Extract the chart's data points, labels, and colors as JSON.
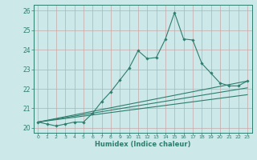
{
  "xlabel": "Humidex (Indice chaleur)",
  "background_color": "#cce8e8",
  "grid_color": "#aacccc",
  "line_color": "#2e7d6e",
  "tick_color": "#2e7d6e",
  "xlim": [
    -0.5,
    23.5
  ],
  "ylim": [
    19.75,
    26.3
  ],
  "yticks": [
    20,
    21,
    22,
    23,
    24,
    25,
    26
  ],
  "xticks": [
    0,
    1,
    2,
    3,
    4,
    5,
    6,
    7,
    8,
    9,
    10,
    11,
    12,
    13,
    14,
    15,
    16,
    17,
    18,
    19,
    20,
    21,
    22,
    23
  ],
  "series1_x": [
    0,
    1,
    2,
    3,
    4,
    5,
    6,
    7,
    8,
    9,
    10,
    11,
    12,
    13,
    14,
    15,
    16,
    17,
    18,
    19,
    20,
    21,
    22,
    23
  ],
  "series1_y": [
    20.3,
    20.2,
    20.1,
    20.2,
    20.3,
    20.3,
    20.75,
    21.35,
    21.85,
    22.45,
    23.05,
    23.95,
    23.55,
    23.6,
    24.55,
    25.9,
    24.55,
    24.5,
    23.3,
    22.8,
    22.3,
    22.15,
    22.15,
    22.4
  ],
  "series2_x": [
    0,
    23
  ],
  "series2_y": [
    20.3,
    22.4
  ],
  "series3_x": [
    0,
    23
  ],
  "series3_y": [
    20.3,
    22.05
  ],
  "series4_x": [
    0,
    23
  ],
  "series4_y": [
    20.3,
    21.7
  ]
}
